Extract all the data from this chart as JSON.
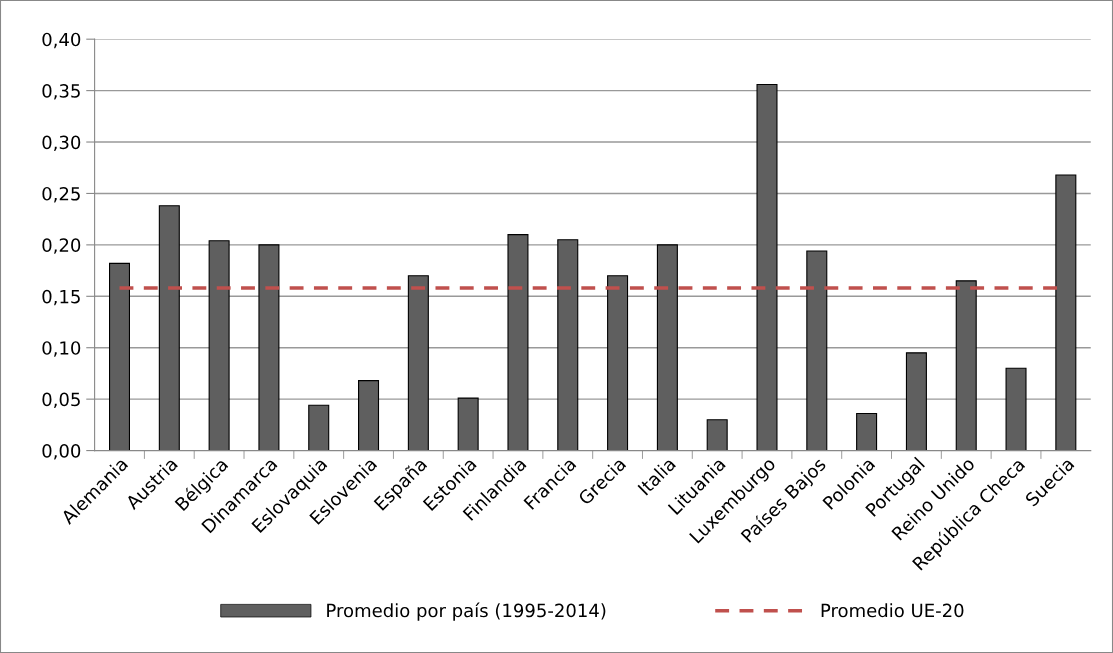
{
  "chart_data": {
    "type": "bar",
    "categories": [
      "Alemania",
      "Austria",
      "Bélgica",
      "Dinamarca",
      "Eslovaquia",
      "Eslovenia",
      "España",
      "Estonia",
      "Finlandia",
      "Francia",
      "Grecia",
      "Italia",
      "Lituania",
      "Luxemburgo",
      "Países Bajos",
      "Polonia",
      "Portugal",
      "Reino Unido",
      "República Checa",
      "Suecia"
    ],
    "series": [
      {
        "name": "Promedio por país (1995-2014)",
        "color": "#5f5f5f",
        "values": [
          0.182,
          0.238,
          0.204,
          0.2,
          0.044,
          0.068,
          0.17,
          0.051,
          0.21,
          0.205,
          0.17,
          0.2,
          0.03,
          0.356,
          0.194,
          0.036,
          0.095,
          0.165,
          0.08,
          0.268
        ]
      }
    ],
    "ref_lines": [
      {
        "axis": "y",
        "value": 0.158,
        "label": "Promedio UE-20",
        "color": "#c0504d",
        "line_style": "dashed"
      }
    ],
    "ylim": [
      0,
      0.4
    ],
    "yticks": [
      {
        "value": 0,
        "label": "0,00"
      },
      {
        "value": 0.05,
        "label": "0,05"
      },
      {
        "value": 0.1,
        "label": "0,10"
      },
      {
        "value": 0.15,
        "label": "0,15"
      },
      {
        "value": 0.2,
        "label": "0,20"
      },
      {
        "value": 0.25,
        "label": "0,25"
      },
      {
        "value": 0.3,
        "label": "0,30"
      },
      {
        "value": 0.35,
        "label": "0,35"
      },
      {
        "value": 0.4,
        "label": "0,40"
      }
    ],
    "grid": "y",
    "legend": "bottom"
  }
}
